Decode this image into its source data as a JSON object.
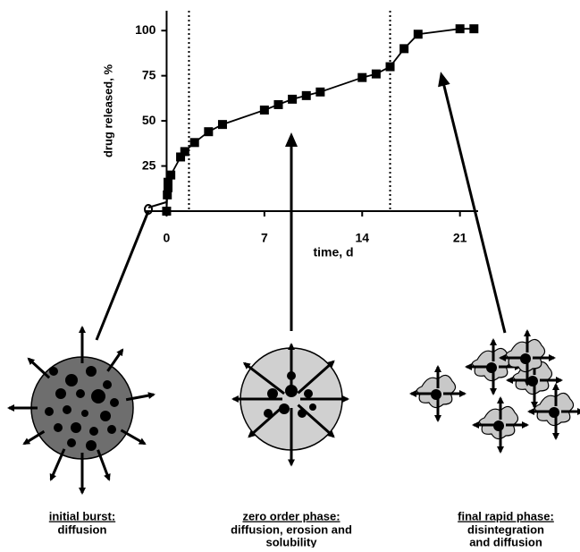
{
  "chart_data": {
    "type": "scatter",
    "x_label": "time, d",
    "y_label": "drug released, %",
    "x": [
      0,
      0.05,
      0.1,
      0.1,
      0.3,
      1,
      1.3,
      2,
      3,
      4,
      7,
      8,
      9,
      10,
      11,
      14,
      15,
      16,
      17,
      18,
      21,
      22
    ],
    "values": [
      0,
      9,
      13,
      16,
      20,
      30,
      33,
      38,
      44,
      48,
      56,
      59,
      62,
      64,
      66,
      74,
      76,
      80,
      90,
      98,
      101,
      101
    ],
    "color": "#000000",
    "xlim": [
      -1.5,
      22.3
    ],
    "ylim": [
      0,
      111
    ],
    "xticks": [
      0,
      7,
      14,
      21
    ],
    "yticks": [
      25,
      50,
      75,
      100
    ],
    "phase_boundaries": [
      1.6,
      16
    ]
  },
  "panels": [
    {
      "title": "initial burst:",
      "lines": [
        "diffusion"
      ]
    },
    {
      "title": "zero order phase:",
      "lines": [
        "diffusion, erosion and",
        "solubility"
      ]
    },
    {
      "title": "final rapid phase:",
      "lines": [
        "disintegration",
        "and diffusion"
      ]
    }
  ]
}
